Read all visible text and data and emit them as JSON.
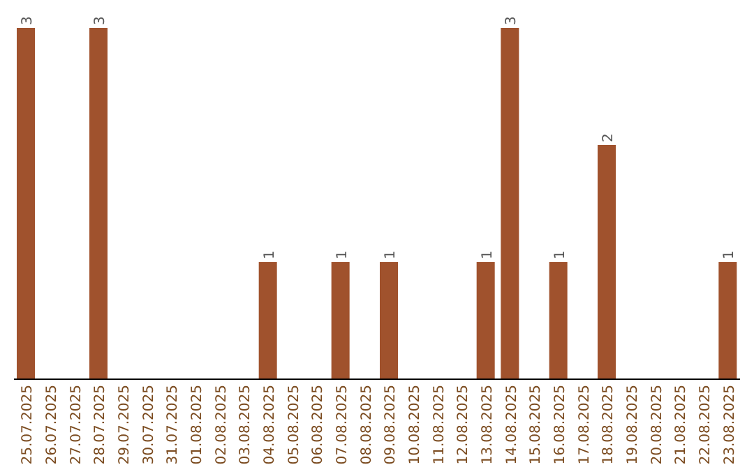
{
  "chart_data": {
    "type": "bar",
    "categories": [
      "25.07.2025",
      "26.07.2025",
      "27.07.2025",
      "28.07.2025",
      "29.07.2025",
      "30.07.2025",
      "31.07.2025",
      "01.08.2025",
      "02.08.2025",
      "03.08.2025",
      "04.08.2025",
      "05.08.2025",
      "06.08.2025",
      "07.08.2025",
      "08.08.2025",
      "09.08.2025",
      "10.08.2025",
      "11.08.2025",
      "12.08.2025",
      "13.08.2025",
      "14.08.2025",
      "15.08.2025",
      "16.08.2025",
      "17.08.2025",
      "18.08.2025",
      "19.08.2025",
      "20.08.2025",
      "21.08.2025",
      "22.08.2025",
      "23.08.2025"
    ],
    "values": [
      3,
      0,
      0,
      3,
      0,
      0,
      0,
      0,
      0,
      0,
      1,
      0,
      0,
      1,
      0,
      1,
      0,
      0,
      0,
      1,
      3,
      0,
      1,
      0,
      2,
      0,
      0,
      0,
      0,
      1
    ],
    "value_labels": [
      "3",
      null,
      null,
      "3",
      null,
      null,
      null,
      null,
      null,
      null,
      "1",
      null,
      null,
      "1",
      null,
      "1",
      null,
      null,
      null,
      "1",
      "3",
      null,
      "1",
      null,
      "2",
      null,
      null,
      null,
      null,
      "1"
    ],
    "color": "#a0522d",
    "grid": false,
    "legend": false
  }
}
